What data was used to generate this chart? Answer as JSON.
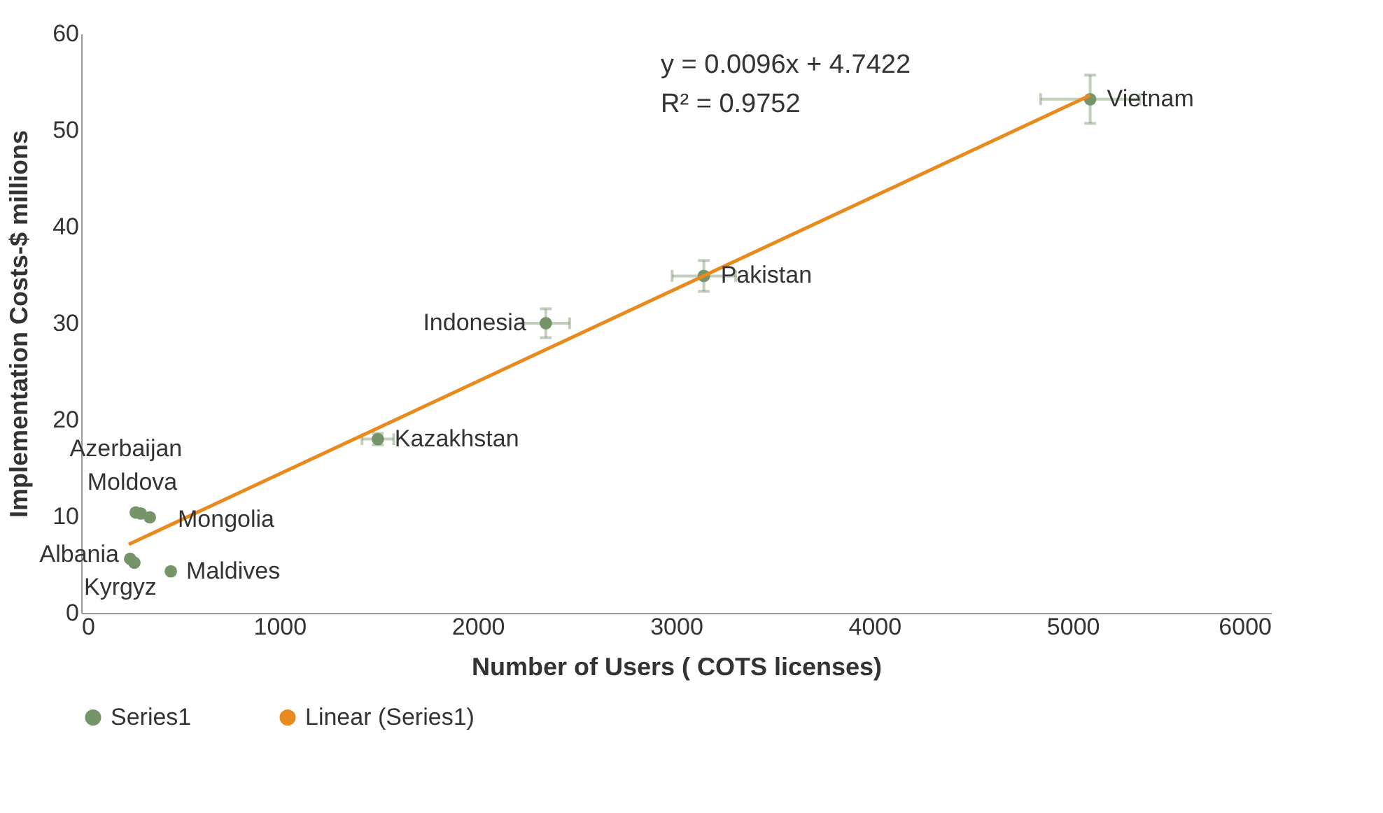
{
  "chart_data": {
    "type": "scatter",
    "xlabel": "Number of Users ( COTS licenses)",
    "ylabel": "Implementation Costs-$ millions",
    "xlim": [
      0,
      6000
    ],
    "xticks": [
      0,
      1000,
      2000,
      3000,
      4000,
      5000,
      6000
    ],
    "ylim": [
      0,
      60
    ],
    "yticks": [
      0,
      10,
      20,
      30,
      40,
      50,
      60
    ],
    "grid": false,
    "legend": "bottom",
    "series": [
      {
        "name": "Series1",
        "marker": "circle",
        "color": "#76946a",
        "x": [
          5088,
          3140,
          2343,
          1496,
          275,
          300,
          346,
          247,
          268,
          452
        ],
        "values": [
          53.2,
          34.9,
          30.0,
          18.0,
          10.4,
          10.3,
          9.9,
          5.6,
          5.2,
          4.3
        ],
        "errors": [
          2.5,
          1.6,
          1.5,
          0.6,
          null,
          null,
          null,
          null,
          null,
          null
        ],
        "xerrors": [
          250,
          160,
          120,
          80,
          null,
          null,
          null,
          null,
          null,
          null
        ]
      },
      {
        "name": "Linear (Series1)",
        "type": "line",
        "color": "#e98a1f",
        "x": [
          240,
          5088
        ],
        "values": [
          7.1,
          53.6
        ],
        "line_style": "solid",
        "marker": "none"
      }
    ],
    "annotations": [
      {
        "text": "Vietnam",
        "x": 5088,
        "y": 53.2
      },
      {
        "text": "Pakistan",
        "x": 3140,
        "y": 34.9
      },
      {
        "text": "Indonesia",
        "x": 2343,
        "y": 30.0
      },
      {
        "text": "Kazakhstan",
        "x": 1496,
        "y": 18.0
      },
      {
        "text": "Azerbaijan",
        "x": 275,
        "y": 10.4
      },
      {
        "text": "Moldova",
        "x": 300,
        "y": 10.3
      },
      {
        "text": "Mongolia",
        "x": 346,
        "y": 9.9
      },
      {
        "text": "Albania",
        "x": 247,
        "y": 5.6
      },
      {
        "text": "Kyrgyz",
        "x": 268,
        "y": 5.2
      },
      {
        "text": "Maldives",
        "x": 452,
        "y": 4.3
      },
      "y = 0.0096x + 4.7422",
      "R² = 0.9752"
    ]
  }
}
